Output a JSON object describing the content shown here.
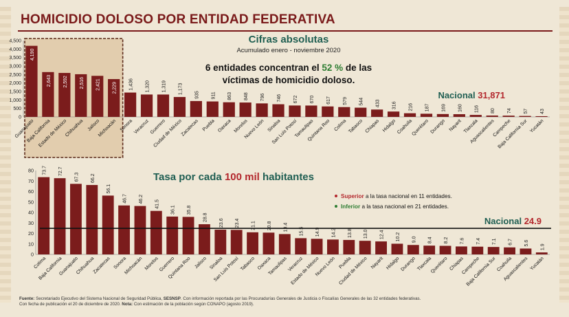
{
  "slide": {
    "title": "HOMICIDIO DOLOSO POR ENTIDAD FEDERATIVA",
    "footer": {
      "fuente_label": "Fuente:",
      "fuente_text_a": " Secretariado Ejecutivo del Sistema Nacional de Seguridad Pública, ",
      "fuente_bold": "SESNSP",
      "fuente_text_b": ". Con información reportada por las Procuradurías Generales de Justicia o Fiscalías Generales de las 32 entidades federativas.",
      "line2_a": "Con fecha de publicación el 20 de diciembre de 2020. ",
      "line2_bold": "Nota:",
      "line2_b": " Con estimación de la población según CONAPO (agosto 2019)."
    }
  },
  "colors": {
    "bar": "#7b1c1c",
    "bar_light": "#b45454",
    "accent_green": "#2e7d32",
    "accent_red": "#b3282d",
    "title": "#7a1a1a",
    "highlight_bg": "#e2cdae",
    "highlight_border": "#5b2a1a",
    "heading_green": "#1f5e52"
  },
  "chart_data": [
    {
      "type": "bar",
      "title": "Cifras absolutas",
      "subtitle": "Acumulado enero - noviembre 2020",
      "annotation": {
        "line1_a": "6 entidades concentran el ",
        "line1_pct": "52 %",
        "line1_b": " de las",
        "line2": "víctimas de homicidio doloso."
      },
      "national": {
        "label": "Nacional ",
        "value": "31,871"
      },
      "highlighted_count": 6,
      "ylim": [
        0,
        4500
      ],
      "yticks": [
        "0",
        "500",
        "1,000",
        "1,500",
        "2,000",
        "2,500",
        "3,000",
        "3,500",
        "4,000",
        "4,500"
      ],
      "ytick_values": [
        0,
        500,
        1000,
        1500,
        2000,
        2500,
        3000,
        3500,
        4000,
        4500
      ],
      "categories": [
        "Guanajuato",
        "Baja California",
        "Estado de México",
        "Chihuahua",
        "Jalisco",
        "Michoacán",
        "Sonora",
        "Veracruz",
        "Guerrero",
        "Ciudad de México",
        "Zacatecas",
        "Puebla",
        "Oaxaca",
        "Morelos",
        "Nuevo León",
        "Sinaloa",
        "San Luis Potosí",
        "Tamaulipas",
        "Quintana Roo",
        "Colima",
        "Tabasco",
        "Chiapas",
        "Hidalgo",
        "Coahuila",
        "Querétaro",
        "Durango",
        "Nayarit",
        "Tlaxcala",
        "Aguascalientes",
        "Campeche",
        "Baja California Sur",
        "Yucatán"
      ],
      "values": [
        4190,
        2643,
        2592,
        2516,
        2421,
        2229,
        1436,
        1320,
        1319,
        1173,
        935,
        911,
        863,
        848,
        796,
        746,
        672,
        670,
        617,
        579,
        544,
        433,
        316,
        216,
        187,
        169,
        160,
        116,
        80,
        74,
        57,
        43
      ],
      "value_labels": [
        "4,190",
        "2,643",
        "2,592",
        "2,516",
        "2,421",
        "2,229",
        "1,436",
        "1,320",
        "1,319",
        "1,173",
        "935",
        "911",
        "863",
        "848",
        "796",
        "746",
        "672",
        "670",
        "617",
        "579",
        "544",
        "433",
        "316",
        "216",
        "187",
        "169",
        "160",
        "116",
        "80",
        "74",
        "57",
        "43"
      ]
    },
    {
      "type": "bar",
      "title_a": "Tasa por cada ",
      "title_b": "100 mil",
      "title_c": " habitantes",
      "legend": [
        {
          "bold": "Superior",
          "text": " a la tasa nacional en 11 entidades.",
          "color": "#b3282d"
        },
        {
          "bold": "Inferior",
          "text": " a la tasa nacional en 21 entidades.",
          "color": "#2e7d32"
        }
      ],
      "national": {
        "label": "Nacional ",
        "value": "24.9",
        "line_value": 24.9
      },
      "ylim": [
        0,
        80
      ],
      "yticks": [
        "0",
        "10",
        "20",
        "30",
        "40",
        "50",
        "60",
        "70",
        "80"
      ],
      "ytick_values": [
        0,
        10,
        20,
        30,
        40,
        50,
        60,
        70,
        80
      ],
      "categories": [
        "Colima",
        "Baja California",
        "Guanajuato",
        "Chihuahua",
        "Zacatecas",
        "Sonora",
        "Michoacán",
        "Morelos",
        "Guerrero",
        "Quintana Roo",
        "Jalisco",
        "Sinaloa",
        "San Luis Potosí",
        "Tabasco",
        "Oaxaca",
        "Tamaulipas",
        "Veracruz",
        "Estado de México",
        "Nuevo León",
        "Puebla",
        "Ciudad de México",
        "Nayarit",
        "Hidalgo",
        "Durango",
        "Tlaxcala",
        "Querétaro",
        "Chiapas",
        "Campeche",
        "Baja California Sur",
        "Coahuila",
        "Aguascalientes",
        "Yucatán"
      ],
      "values": [
        73.7,
        72.7,
        67.3,
        66.2,
        56.1,
        46.7,
        46.2,
        41.5,
        36.1,
        35.8,
        28.8,
        23.6,
        23.4,
        21.1,
        20.8,
        19.4,
        15.5,
        14.9,
        14.2,
        13.8,
        13.0,
        12.4,
        10.2,
        9.0,
        8.4,
        8.2,
        7.6,
        7.4,
        7.1,
        6.7,
        5.6,
        1.9
      ],
      "value_labels": [
        "73.7",
        "72.7",
        "67.3",
        "66.2",
        "56.1",
        "46.7",
        "46.2",
        "41.5",
        "36.1",
        "35.8",
        "28.8",
        "23.6",
        "23.4",
        "21.1",
        "20.8",
        "19.4",
        "15.5",
        "14.9",
        "14.2",
        "13.8",
        "13.0",
        "12.4",
        "10.2",
        "9.0",
        "8.4",
        "8.2",
        "7.6",
        "7.4",
        "7.1",
        "6.7",
        "5.6",
        "1.9"
      ]
    }
  ]
}
